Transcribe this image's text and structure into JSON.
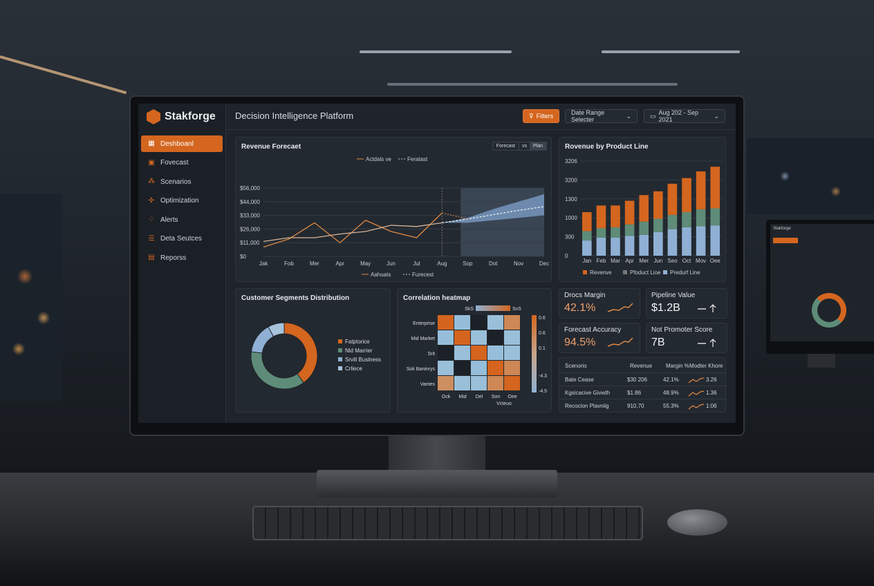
{
  "app": {
    "brand": "Stakforge",
    "title": "Decision Intelligence Platform"
  },
  "header": {
    "filters_label": "Filters",
    "date_range_label": "Date Range Selecter",
    "date_value": "Aug 202 - Sep 2021"
  },
  "sidebar": {
    "items": [
      {
        "label": "Deshboanl",
        "icon": "dashboard-icon",
        "active": true
      },
      {
        "label": "Fovecast",
        "icon": "forecast-icon"
      },
      {
        "label": "Scenarios",
        "icon": "scenarios-icon"
      },
      {
        "label": "Optimization",
        "icon": "optimization-icon"
      },
      {
        "label": "Alerts",
        "icon": "bell-icon"
      },
      {
        "label": "Deta Seutces",
        "icon": "database-icon"
      },
      {
        "label": "Reporss",
        "icon": "report-icon"
      }
    ]
  },
  "colors": {
    "accent": "#d4661f",
    "green": "#5e8c78",
    "light_blue": "#8fb0d4",
    "pale_blue": "#a8c4dc",
    "background": "#1f242b"
  },
  "chart_data": [
    {
      "type": "line",
      "title": "Revenue Forecaet",
      "toggles": [
        "Forecast",
        "vs",
        "Plan"
      ],
      "legend_top": [
        "Actdals ve",
        "Feratast"
      ],
      "legend_bottom": [
        "Aahuats",
        "Furecest"
      ],
      "categories": [
        "Jak",
        "Fob",
        "Mer",
        "Apr",
        "May",
        "Jun",
        "Jul",
        "Aug",
        "Sop",
        "Dot",
        "Nov",
        "Dec"
      ],
      "y_tick_labels": [
        "$0",
        "$11,000",
        "$26,000",
        "$33,000",
        "$44,000",
        "$56,000"
      ],
      "ylim": [
        0,
        55000
      ],
      "grid": true,
      "series": [
        {
          "style": "solid",
          "color": "#e08a45",
          "values": [
            7500,
            14000,
            27000,
            11000,
            29000,
            20000,
            15000,
            35000,
            null,
            null,
            null,
            null
          ]
        },
        {
          "style": "solid",
          "color": "#d9b59a",
          "values": [
            12000,
            15000,
            15000,
            18000,
            20000,
            25000,
            24000,
            27000,
            null,
            null,
            null,
            null
          ]
        },
        {
          "style": "dashed",
          "color": "#e8eef4",
          "values": [
            null,
            null,
            null,
            null,
            null,
            null,
            null,
            27000,
            30000,
            33500,
            37000,
            40000
          ]
        }
      ],
      "forecast_band": {
        "lower": [
          27000,
          27000,
          29000,
          31000,
          33000
        ],
        "upper": [
          27000,
          31000,
          38000,
          44000,
          50000
        ],
        "start": "Aug"
      }
    },
    {
      "type": "bar",
      "stacked": true,
      "title": "Rovenue by Product Line",
      "categories": [
        "Jan",
        "Feb",
        "Mar",
        "Apr",
        "Mer",
        "Jun",
        "Seo",
        "Oct",
        "Mov",
        "Oee"
      ],
      "y_tick_labels": [
        "0",
        "300",
        "1000",
        "1300",
        "3200",
        "3206"
      ],
      "ylim": [
        0,
        5
      ],
      "series": [
        {
          "name": "Predurf Line",
          "color": "#8fb0d4",
          "values": [
            0.8,
            0.95,
            0.95,
            1.05,
            1.1,
            1.25,
            1.4,
            1.5,
            1.55,
            1.6
          ]
        },
        {
          "name": "Pfoduct Lioe",
          "color": "#5e8c78",
          "values": [
            0.5,
            0.5,
            0.55,
            0.6,
            0.7,
            0.7,
            0.75,
            0.8,
            0.9,
            0.9
          ]
        },
        {
          "name": "Revenve",
          "color": "#d4661f",
          "values": [
            1.0,
            1.2,
            1.15,
            1.25,
            1.4,
            1.45,
            1.65,
            1.8,
            2.0,
            2.2
          ]
        }
      ],
      "legend_order": [
        "Revenve",
        "Pfoduct Lioe",
        "Predurf Line"
      ]
    },
    {
      "type": "pie",
      "donut": true,
      "title": "Customer Segments Distribution",
      "slices": [
        {
          "label": "Fatptorice",
          "value": 40,
          "color": "#d4661f"
        },
        {
          "label": "Nld Marrier",
          "value": 37,
          "color": "#5e8c78"
        },
        {
          "label": "Srvill Buslness",
          "value": 15,
          "color": "#8fb0d4"
        },
        {
          "label": "Crliece",
          "value": 8,
          "color": "#a8c4dc"
        }
      ]
    },
    {
      "type": "heatmap",
      "title": "Correlation heatmap",
      "scale_labels": [
        "SkS",
        "SvS"
      ],
      "rows": [
        "Enterprise",
        "Mid Market",
        "Srit",
        "Sok Baninrys",
        "Vantes"
      ],
      "cols": [
        "Ock",
        "Mid",
        "Del",
        "Son",
        "Oee"
      ],
      "col_axis_label": "Vcteuo",
      "colorbar_ticks": [
        "0.6",
        "0.6",
        "0.1",
        "-4.3",
        "-4.5"
      ],
      "values": [
        [
          1,
          -0.5,
          0,
          -0.4,
          0.5
        ],
        [
          -0.5,
          1,
          -0.4,
          0,
          -0.4
        ],
        [
          0,
          -0.4,
          1,
          -0.5,
          -0.4
        ],
        [
          -0.4,
          0,
          -0.5,
          1,
          0.5
        ],
        [
          0.4,
          -0.4,
          -0.4,
          0.5,
          1
        ]
      ]
    }
  ],
  "kpis": [
    {
      "label": "Drocs Margin",
      "value": "42.1%",
      "trend": "sparkline"
    },
    {
      "label": "Pipeline Value",
      "value": "$1.2B",
      "trend": "up"
    },
    {
      "label": "Forecast Accuracy",
      "value": "94.5%",
      "trend": "sparkline"
    },
    {
      "label": "Not Promoter Score",
      "value": "7B",
      "trend": "up"
    }
  ],
  "scenario_table": {
    "headers": [
      "Scenorio",
      "Revenue",
      "Margin %",
      "Modter Khore"
    ],
    "rows": [
      [
        "Bate Cease",
        "$30 206",
        "42.1%",
        "3.26"
      ],
      [
        "Kgsicacive Givwth",
        "$1.86",
        "48.9%",
        "1.36"
      ],
      [
        "Recocion Plavniig",
        "910,70",
        "55.3%",
        "1:06"
      ]
    ]
  },
  "side_monitor": {
    "brand": "Stakforge"
  }
}
